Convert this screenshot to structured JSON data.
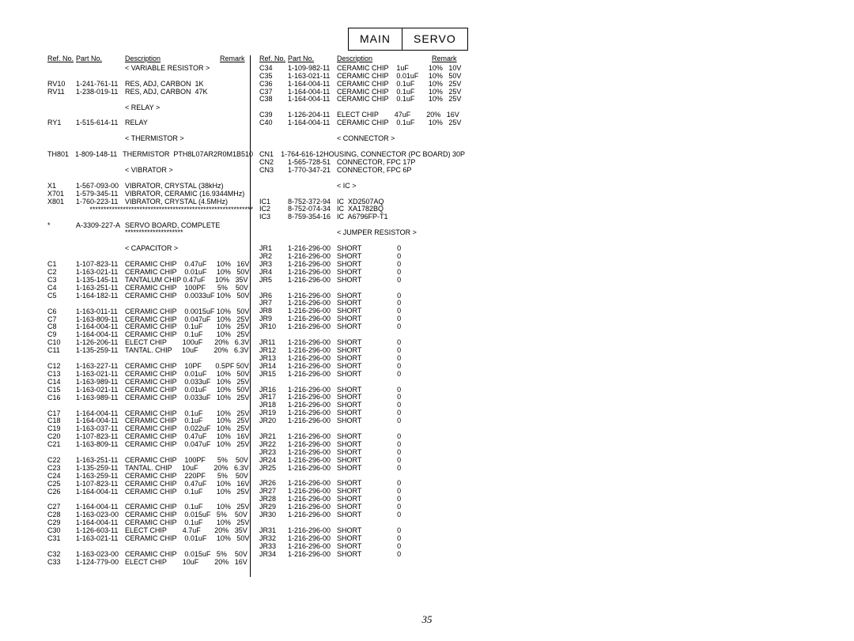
{
  "title": {
    "left": "MAIN",
    "right": "SERVO"
  },
  "headers": {
    "ref": "Ref. No.",
    "part": "Part No.",
    "desc": "Description",
    "remark": "Remark"
  },
  "pageNumber": "35",
  "leftRows": [
    {
      "t": "section",
      "v": "< VARIABLE RESISTOR >"
    },
    {
      "t": "blank"
    },
    {
      "t": "row",
      "r": "RV10",
      "p": "1-241-761-11",
      "d": "RES, ADJ, CARBON  1K"
    },
    {
      "t": "row",
      "r": "RV11",
      "p": "1-238-019-11",
      "d": "RES, ADJ, CARBON  47K"
    },
    {
      "t": "blank"
    },
    {
      "t": "section",
      "v": "< RELAY >"
    },
    {
      "t": "blank"
    },
    {
      "t": "row",
      "r": "RY1",
      "p": "1-515-614-11",
      "d": "RELAY"
    },
    {
      "t": "blank"
    },
    {
      "t": "section",
      "v": "< THERMISTOR >"
    },
    {
      "t": "blank"
    },
    {
      "t": "row",
      "r": "TH801",
      "p": "1-809-148-11",
      "d": "THERMISTOR  PTH8L07AR2R0M1B510"
    },
    {
      "t": "blank"
    },
    {
      "t": "section",
      "v": "< VIBRATOR >"
    },
    {
      "t": "blank"
    },
    {
      "t": "row",
      "r": "X1",
      "p": "1-567-093-00",
      "d": "VIBRATOR, CRYSTAL (38kHz)"
    },
    {
      "t": "row",
      "r": "X701",
      "p": "1-579-345-11",
      "d": "VIBRATOR, CERAMIC (16.9344MHz)"
    },
    {
      "t": "row",
      "r": "X801",
      "p": "1-760-223-11",
      "d": "VIBRATOR, CRYSTAL (4.5MHz)"
    },
    {
      "t": "row",
      "r": "",
      "p": "",
      "d": "***********************************************************"
    },
    {
      "t": "blank"
    },
    {
      "t": "row",
      "r": "*",
      "p": "A-3309-227-A",
      "d": "SERVO BOARD, COMPLETE"
    },
    {
      "t": "desconly",
      "v": "*********************"
    },
    {
      "t": "blank"
    },
    {
      "t": "section",
      "v": "< CAPACITOR >"
    },
    {
      "t": "blank"
    },
    {
      "t": "row",
      "r": "C1",
      "p": "1-107-823-11",
      "d": "CERAMIC CHIP    0.47uF     10%   16V"
    },
    {
      "t": "row",
      "r": "C2",
      "p": "1-163-021-11",
      "d": "CERAMIC CHIP    0.01uF     10%   50V"
    },
    {
      "t": "row",
      "r": "C3",
      "p": "1-135-145-11",
      "d": "TANTALUM CHIP 0.47uF     10%   35V"
    },
    {
      "t": "row",
      "r": "C4",
      "p": "1-163-251-11",
      "d": "CERAMIC CHIP    100PF      5%    50V"
    },
    {
      "t": "row",
      "r": "C5",
      "p": "1-164-182-11",
      "d": "CERAMIC CHIP    0.0033uF 10%   50V"
    },
    {
      "t": "blank"
    },
    {
      "t": "row",
      "r": "C6",
      "p": "1-163-011-11",
      "d": "CERAMIC CHIP    0.0015uF 10%   50V"
    },
    {
      "t": "row",
      "r": "C7",
      "p": "1-163-809-11",
      "d": "CERAMIC CHIP    0.047uF   10%   25V"
    },
    {
      "t": "row",
      "r": "C8",
      "p": "1-164-004-11",
      "d": "CERAMIC CHIP    0.1uF       10%   25V"
    },
    {
      "t": "row",
      "r": "C9",
      "p": "1-164-004-11",
      "d": "CERAMIC CHIP    0.1uF       10%   25V"
    },
    {
      "t": "row",
      "r": "C10",
      "p": "1-126-206-11",
      "d": "ELECT CHIP        100uF      20%   6.3V"
    },
    {
      "t": "row",
      "r": "C11",
      "p": "1-135-259-11",
      "d": "TANTAL. CHIP     10uF        20%   6.3V"
    },
    {
      "t": "blank"
    },
    {
      "t": "row",
      "r": "C12",
      "p": "1-163-227-11",
      "d": "CERAMIC CHIP    10PF       0.5PF 50V"
    },
    {
      "t": "row",
      "r": "C13",
      "p": "1-163-021-11",
      "d": "CERAMIC CHIP    0.01uF     10%   50V"
    },
    {
      "t": "row",
      "r": "C14",
      "p": "1-163-989-11",
      "d": "CERAMIC CHIP    0.033uF   10%   25V"
    },
    {
      "t": "row",
      "r": "C15",
      "p": "1-163-021-11",
      "d": "CERAMIC CHIP    0.01uF     10%   50V"
    },
    {
      "t": "row",
      "r": "C16",
      "p": "1-163-989-11",
      "d": "CERAMIC CHIP    0.033uF   10%   25V"
    },
    {
      "t": "blank"
    },
    {
      "t": "row",
      "r": "C17",
      "p": "1-164-004-11",
      "d": "CERAMIC CHIP    0.1uF       10%   25V"
    },
    {
      "t": "row",
      "r": "C18",
      "p": "1-164-004-11",
      "d": "CERAMIC CHIP    0.1uF       10%   25V"
    },
    {
      "t": "row",
      "r": "C19",
      "p": "1-163-037-11",
      "d": "CERAMIC CHIP    0.022uF   10%   25V"
    },
    {
      "t": "row",
      "r": "C20",
      "p": "1-107-823-11",
      "d": "CERAMIC CHIP    0.47uF     10%   16V"
    },
    {
      "t": "row",
      "r": "C21",
      "p": "1-163-809-11",
      "d": "CERAMIC CHIP    0.047uF   10%   25V"
    },
    {
      "t": "blank"
    },
    {
      "t": "row",
      "r": "C22",
      "p": "1-163-251-11",
      "d": "CERAMIC CHIP    100PF      5%    50V"
    },
    {
      "t": "row",
      "r": "C23",
      "p": "1-135-259-11",
      "d": "TANTAL. CHIP     10uF        20%   6.3V"
    },
    {
      "t": "row",
      "r": "C24",
      "p": "1-163-259-11",
      "d": "CERAMIC CHIP    220PF      5%    50V"
    },
    {
      "t": "row",
      "r": "C25",
      "p": "1-107-823-11",
      "d": "CERAMIC CHIP    0.47uF     10%   16V"
    },
    {
      "t": "row",
      "r": "C26",
      "p": "1-164-004-11",
      "d": "CERAMIC CHIP    0.1uF       10%   25V"
    },
    {
      "t": "blank"
    },
    {
      "t": "row",
      "r": "C27",
      "p": "1-164-004-11",
      "d": "CERAMIC CHIP    0.1uF       10%   25V"
    },
    {
      "t": "row",
      "r": "C28",
      "p": "1-163-023-00",
      "d": "CERAMIC CHIP    0.015uF   5%    50V"
    },
    {
      "t": "row",
      "r": "C29",
      "p": "1-164-004-11",
      "d": "CERAMIC CHIP    0.1uF       10%   25V"
    },
    {
      "t": "row",
      "r": "C30",
      "p": "1-126-603-11",
      "d": "ELECT CHIP        4.7uF       20%   35V"
    },
    {
      "t": "row",
      "r": "C31",
      "p": "1-163-021-11",
      "d": "CERAMIC CHIP    0.01uF     10%   50V"
    },
    {
      "t": "blank"
    },
    {
      "t": "row",
      "r": "C32",
      "p": "1-163-023-00",
      "d": "CERAMIC CHIP    0.015uF   5%    50V"
    },
    {
      "t": "row",
      "r": "C33",
      "p": "1-124-779-00",
      "d": "ELECT CHIP        10uF        20%   16V"
    }
  ],
  "rightRows": [
    {
      "t": "row",
      "r": "C34",
      "p": "1-109-982-11",
      "d": "CERAMIC CHIP    1uF          10%   10V"
    },
    {
      "t": "row",
      "r": "C35",
      "p": "1-163-021-11",
      "d": "CERAMIC CHIP    0.01uF     10%   50V"
    },
    {
      "t": "row",
      "r": "C36",
      "p": "1-164-004-11",
      "d": "CERAMIC CHIP    0.1uF       10%   25V"
    },
    {
      "t": "row",
      "r": "C37",
      "p": "1-164-004-11",
      "d": "CERAMIC CHIP    0.1uF       10%   25V"
    },
    {
      "t": "row",
      "r": "C38",
      "p": "1-164-004-11",
      "d": "CERAMIC CHIP    0.1uF       10%   25V"
    },
    {
      "t": "blank"
    },
    {
      "t": "row",
      "r": "C39",
      "p": "1-126-204-11",
      "d": "ELECT CHIP        47uF        20%   16V"
    },
    {
      "t": "row",
      "r": "C40",
      "p": "1-164-004-11",
      "d": "CERAMIC CHIP    0.1uF       10%   25V"
    },
    {
      "t": "blank"
    },
    {
      "t": "sectionc",
      "v": "< CONNECTOR >"
    },
    {
      "t": "blank"
    },
    {
      "t": "row",
      "r": "CN1",
      "p": "1-764-616-12",
      "d": "HOUSING, CONNECTOR (PC BOARD) 30P"
    },
    {
      "t": "row",
      "r": "CN2",
      "p": "1-565-728-51",
      "d": "CONNECTOR, FPC 17P"
    },
    {
      "t": "row",
      "r": "CN3",
      "p": "1-770-347-21",
      "d": "CONNECTOR, FPC 6P"
    },
    {
      "t": "blank"
    },
    {
      "t": "sectionc",
      "v": "< IC >"
    },
    {
      "t": "blank"
    },
    {
      "t": "row",
      "r": "IC1",
      "p": "8-752-372-94",
      "d": "IC  XD2507AQ"
    },
    {
      "t": "row",
      "r": "IC2",
      "p": "8-752-074-34",
      "d": "IC  XA1782BQ"
    },
    {
      "t": "row",
      "r": "IC3",
      "p": "8-759-354-16",
      "d": "IC  A6796FP-T1"
    },
    {
      "t": "blank"
    },
    {
      "t": "sectionc",
      "v": "< JUMPER RESISTOR >"
    },
    {
      "t": "blank"
    },
    {
      "t": "row",
      "r": "JR1",
      "p": "1-216-296-00",
      "d": "SHORT                  0"
    },
    {
      "t": "row",
      "r": "JR2",
      "p": "1-216-296-00",
      "d": "SHORT                  0"
    },
    {
      "t": "row",
      "r": "JR3",
      "p": "1-216-296-00",
      "d": "SHORT                  0"
    },
    {
      "t": "row",
      "r": "JR4",
      "p": "1-216-296-00",
      "d": "SHORT                  0"
    },
    {
      "t": "row",
      "r": "JR5",
      "p": "1-216-296-00",
      "d": "SHORT                  0"
    },
    {
      "t": "blank"
    },
    {
      "t": "row",
      "r": "JR6",
      "p": "1-216-296-00",
      "d": "SHORT                  0"
    },
    {
      "t": "row",
      "r": "JR7",
      "p": "1-216-296-00",
      "d": "SHORT                  0"
    },
    {
      "t": "row",
      "r": "JR8",
      "p": "1-216-296-00",
      "d": "SHORT                  0"
    },
    {
      "t": "row",
      "r": "JR9",
      "p": "1-216-296-00",
      "d": "SHORT                  0"
    },
    {
      "t": "row",
      "r": "JR10",
      "p": "1-216-296-00",
      "d": "SHORT                  0"
    },
    {
      "t": "blank"
    },
    {
      "t": "row",
      "r": "JR11",
      "p": "1-216-296-00",
      "d": "SHORT                  0"
    },
    {
      "t": "row",
      "r": "JR12",
      "p": "1-216-296-00",
      "d": "SHORT                  0"
    },
    {
      "t": "row",
      "r": "JR13",
      "p": "1-216-296-00",
      "d": "SHORT                  0"
    },
    {
      "t": "row",
      "r": "JR14",
      "p": "1-216-296-00",
      "d": "SHORT                  0"
    },
    {
      "t": "row",
      "r": "JR15",
      "p": "1-216-296-00",
      "d": "SHORT                  0"
    },
    {
      "t": "blank"
    },
    {
      "t": "row",
      "r": "JR16",
      "p": "1-216-296-00",
      "d": "SHORT                  0"
    },
    {
      "t": "row",
      "r": "JR17",
      "p": "1-216-296-00",
      "d": "SHORT                  0"
    },
    {
      "t": "row",
      "r": "JR18",
      "p": "1-216-296-00",
      "d": "SHORT                  0"
    },
    {
      "t": "row",
      "r": "JR19",
      "p": "1-216-296-00",
      "d": "SHORT                  0"
    },
    {
      "t": "row",
      "r": "JR20",
      "p": "1-216-296-00",
      "d": "SHORT                  0"
    },
    {
      "t": "blank"
    },
    {
      "t": "row",
      "r": "JR21",
      "p": "1-216-296-00",
      "d": "SHORT                  0"
    },
    {
      "t": "row",
      "r": "JR22",
      "p": "1-216-296-00",
      "d": "SHORT                  0"
    },
    {
      "t": "row",
      "r": "JR23",
      "p": "1-216-296-00",
      "d": "SHORT                  0"
    },
    {
      "t": "row",
      "r": "JR24",
      "p": "1-216-296-00",
      "d": "SHORT                  0"
    },
    {
      "t": "row",
      "r": "JR25",
      "p": "1-216-296-00",
      "d": "SHORT                  0"
    },
    {
      "t": "blank"
    },
    {
      "t": "row",
      "r": "JR26",
      "p": "1-216-296-00",
      "d": "SHORT                  0"
    },
    {
      "t": "row",
      "r": "JR27",
      "p": "1-216-296-00",
      "d": "SHORT                  0"
    },
    {
      "t": "row",
      "r": "JR28",
      "p": "1-216-296-00",
      "d": "SHORT                  0"
    },
    {
      "t": "row",
      "r": "JR29",
      "p": "1-216-296-00",
      "d": "SHORT                  0"
    },
    {
      "t": "row",
      "r": "JR30",
      "p": "1-216-296-00",
      "d": "SHORT                  0"
    },
    {
      "t": "blank"
    },
    {
      "t": "row",
      "r": "JR31",
      "p": "1-216-296-00",
      "d": "SHORT                  0"
    },
    {
      "t": "row",
      "r": "JR32",
      "p": "1-216-296-00",
      "d": "SHORT                  0"
    },
    {
      "t": "row",
      "r": "JR33",
      "p": "1-216-296-00",
      "d": "SHORT                  0"
    },
    {
      "t": "row",
      "r": "JR34",
      "p": "1-216-296-00",
      "d": "SHORT                  0"
    }
  ]
}
